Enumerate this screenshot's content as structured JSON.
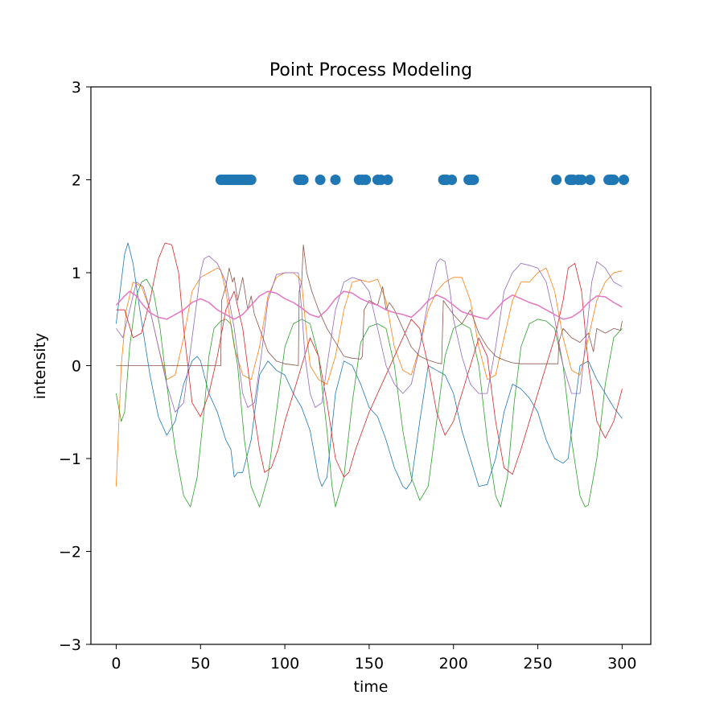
{
  "chart_data": {
    "type": "line",
    "title": "Point Process Modeling",
    "xlabel": "time",
    "ylabel": "intensity",
    "xlim": [
      -15,
      317
    ],
    "ylim": [
      -3,
      3
    ],
    "x_ticks": [
      0,
      50,
      100,
      150,
      200,
      250,
      300
    ],
    "y_ticks": [
      -3,
      -2,
      -1,
      0,
      1,
      2,
      3
    ],
    "x_tick_labels": [
      "0",
      "50",
      "100",
      "150",
      "200",
      "250",
      "300"
    ],
    "y_tick_labels": [
      "−3",
      "−2",
      "−1",
      "0",
      "1",
      "2",
      "3"
    ],
    "grid": false,
    "legend": "none",
    "events": {
      "y": 2,
      "color": "#1f77b4",
      "x": [
        62,
        63,
        64,
        65,
        66,
        67,
        68,
        69,
        70,
        71,
        72,
        73,
        74,
        75,
        76,
        77,
        78,
        79,
        80,
        108,
        109,
        110,
        111,
        121,
        130,
        144,
        146,
        148,
        155,
        157,
        161,
        194,
        195,
        196,
        199,
        209,
        210,
        211,
        212,
        261,
        269,
        270,
        271,
        274,
        276,
        281,
        292,
        293,
        294,
        295,
        301
      ]
    },
    "series": [
      {
        "color": "#1f77b4",
        "width": 0.8,
        "x": [
          0,
          5,
          7,
          10,
          14,
          20,
          25,
          30,
          35,
          40,
          45,
          48,
          50,
          55,
          60,
          65,
          68,
          70,
          72,
          75,
          80,
          85,
          90,
          95,
          100,
          105,
          110,
          115,
          120,
          122,
          125,
          130,
          135,
          140,
          145,
          150,
          155,
          160,
          165,
          170,
          172,
          175,
          180,
          185,
          190,
          195,
          200,
          205,
          210,
          215,
          220,
          225,
          230,
          235,
          240,
          245,
          250,
          255,
          260,
          265,
          268,
          270,
          275,
          280,
          285,
          290,
          295,
          300
        ],
        "y": [
          0.45,
          1.2,
          1.32,
          1.1,
          0.6,
          -0.1,
          -0.55,
          -0.75,
          -0.6,
          -0.2,
          0.05,
          0.1,
          0.05,
          -0.3,
          -0.5,
          -0.8,
          -0.9,
          -1.2,
          -1.15,
          -1.15,
          -0.8,
          -0.1,
          0.05,
          -0.05,
          -0.1,
          -0.3,
          -0.45,
          -0.7,
          -1.2,
          -1.3,
          -1.2,
          -0.3,
          0.05,
          0,
          -0.2,
          -0.45,
          -0.55,
          -0.8,
          -1.1,
          -1.3,
          -1.33,
          -1.25,
          -0.6,
          0,
          -0.05,
          -0.1,
          -0.3,
          -0.7,
          -1.0,
          -1.3,
          -1.28,
          -1.0,
          -0.5,
          -0.2,
          -0.25,
          -0.35,
          -0.5,
          -0.8,
          -1.0,
          -1.05,
          -1.0,
          -0.7,
          0.0,
          0.05,
          -0.15,
          -0.3,
          -0.45,
          -0.57
        ]
      },
      {
        "color": "#ff7f0e",
        "width": 0.8,
        "x": [
          0,
          3,
          6,
          10,
          15,
          20,
          25,
          30,
          35,
          40,
          45,
          50,
          55,
          60,
          62,
          65,
          70,
          75,
          80,
          85,
          90,
          95,
          100,
          105,
          108,
          110,
          112,
          115,
          120,
          125,
          130,
          135,
          140,
          145,
          150,
          155,
          160,
          165,
          170,
          175,
          180,
          185,
          190,
          195,
          200,
          205,
          210,
          215,
          220,
          225,
          230,
          235,
          240,
          245,
          250,
          255,
          260,
          265,
          270,
          275,
          280,
          285,
          290,
          295,
          300
        ],
        "y": [
          -1.3,
          0,
          0.6,
          0.9,
          0.85,
          0.6,
          0.2,
          -0.15,
          -0.1,
          0.3,
          0.8,
          0.95,
          1.0,
          1.05,
          1.03,
          0.8,
          0.2,
          -0.1,
          -0.15,
          0.2,
          0.75,
          0.95,
          1.0,
          1.0,
          0.95,
          0.9,
          0.5,
          0.0,
          -0.15,
          -0.2,
          0.1,
          0.6,
          0.9,
          0.92,
          0.9,
          0.93,
          0.7,
          0.2,
          -0.05,
          -0.1,
          0.2,
          0.6,
          0.8,
          0.9,
          0.95,
          0.95,
          0.7,
          0.2,
          -0.15,
          -0.1,
          0.3,
          0.7,
          0.9,
          0.9,
          1.0,
          1.05,
          0.8,
          0.3,
          -0.05,
          -0.1,
          0.3,
          0.7,
          0.9,
          1.0,
          1.02
        ]
      },
      {
        "color": "#2ca02c",
        "width": 0.8,
        "x": [
          0,
          3,
          5,
          8,
          12,
          15,
          18,
          22,
          26,
          30,
          35,
          40,
          44,
          48,
          52,
          55,
          58,
          62,
          65,
          68,
          72,
          76,
          80,
          85,
          90,
          95,
          100,
          105,
          110,
          115,
          120,
          125,
          128,
          130,
          135,
          140,
          145,
          150,
          155,
          160,
          165,
          170,
          175,
          180,
          185,
          190,
          195,
          200,
          205,
          210,
          215,
          220,
          225,
          228,
          232,
          236,
          240,
          245,
          250,
          255,
          260,
          265,
          270,
          275,
          278,
          280,
          285,
          290,
          295,
          300
        ],
        "y": [
          -0.3,
          -0.6,
          -0.5,
          0.2,
          0.75,
          0.9,
          0.93,
          0.8,
          0.4,
          -0.2,
          -0.9,
          -1.4,
          -1.52,
          -1.2,
          -0.5,
          0.1,
          0.4,
          0.48,
          0.5,
          0.45,
          0.0,
          -0.8,
          -1.3,
          -1.52,
          -1.2,
          -0.5,
          0.2,
          0.45,
          0.5,
          0.45,
          0.1,
          -0.7,
          -1.3,
          -1.52,
          -1.2,
          -0.4,
          0.25,
          0.42,
          0.45,
          0.4,
          0.0,
          -0.7,
          -1.2,
          -1.45,
          -1.3,
          -0.6,
          0.1,
          0.4,
          0.45,
          0.4,
          0.0,
          -0.8,
          -1.4,
          -1.52,
          -1.2,
          -0.4,
          0.2,
          0.45,
          0.5,
          0.48,
          0.4,
          0.0,
          -0.8,
          -1.4,
          -1.52,
          -1.5,
          -1.0,
          -0.2,
          0.3,
          0.4
        ]
      },
      {
        "color": "#d62728",
        "width": 0.8,
        "x": [
          0,
          5,
          10,
          15,
          20,
          25,
          29,
          33,
          37,
          40,
          45,
          50,
          55,
          60,
          65,
          70,
          75,
          80,
          85,
          88,
          92,
          96,
          100,
          105,
          110,
          115,
          120,
          125,
          130,
          135,
          138,
          142,
          146,
          150,
          155,
          160,
          165,
          170,
          175,
          180,
          185,
          190,
          195,
          200,
          205,
          210,
          215,
          220,
          225,
          230,
          235,
          240,
          245,
          250,
          255,
          260,
          265,
          268,
          272,
          276,
          280,
          285,
          290,
          295,
          300
        ],
        "y": [
          0.6,
          0.6,
          0.3,
          0.35,
          0.7,
          1.15,
          1.32,
          1.3,
          1.0,
          0.4,
          -0.4,
          -0.55,
          -0.3,
          0.1,
          0.6,
          0.8,
          0.4,
          -0.3,
          -0.9,
          -1.15,
          -1.1,
          -0.9,
          -0.6,
          -0.3,
          0.0,
          0.3,
          0.1,
          -0.4,
          -1.0,
          -1.2,
          -1.15,
          -0.9,
          -0.7,
          -0.5,
          -0.3,
          -0.1,
          0.1,
          0.3,
          0.5,
          0.4,
          0.0,
          -0.5,
          -0.75,
          -0.6,
          -0.3,
          0.0,
          0.3,
          0.1,
          -0.6,
          -1.1,
          -1.17,
          -0.9,
          -0.6,
          -0.3,
          0.0,
          0.3,
          0.7,
          1.05,
          1.1,
          0.8,
          0.0,
          -0.6,
          -0.78,
          -0.6,
          -0.25
        ]
      },
      {
        "color": "#9467bd",
        "width": 0.8,
        "x": [
          0,
          4,
          8,
          12,
          16,
          20,
          25,
          30,
          35,
          40,
          45,
          50,
          52,
          55,
          60,
          65,
          70,
          75,
          78,
          82,
          86,
          90,
          95,
          100,
          105,
          108,
          110,
          112,
          115,
          118,
          122,
          125,
          130,
          135,
          140,
          145,
          150,
          155,
          160,
          165,
          170,
          175,
          180,
          185,
          190,
          192,
          195,
          198,
          200,
          205,
          210,
          215,
          220,
          225,
          230,
          235,
          240,
          245,
          250,
          255,
          260,
          265,
          270,
          275,
          278,
          282,
          285,
          290,
          295,
          300
        ],
        "y": [
          0.4,
          0.3,
          0.6,
          0.9,
          0.85,
          0.6,
          0.2,
          -0.2,
          -0.5,
          -0.4,
          0.3,
          1.0,
          1.15,
          1.18,
          1.1,
          0.9,
          0.4,
          -0.3,
          -0.45,
          -0.4,
          0.1,
          0.7,
          0.98,
          1.0,
          1.0,
          1.0,
          0.6,
          0.1,
          -0.3,
          -0.45,
          -0.4,
          0.0,
          0.6,
          0.9,
          0.95,
          0.92,
          0.8,
          0.4,
          0.0,
          -0.2,
          -0.3,
          -0.2,
          0.2,
          0.7,
          1.1,
          1.15,
          1.12,
          0.8,
          0.5,
          0.1,
          -0.2,
          -0.3,
          -0.3,
          0.2,
          0.8,
          1.0,
          1.1,
          1.08,
          1.05,
          0.9,
          0.5,
          0.0,
          -0.3,
          -0.3,
          0.2,
          0.9,
          1.12,
          1.05,
          0.9,
          0.85
        ]
      },
      {
        "color": "#8c564b",
        "width": 0.8,
        "x": [
          0,
          62,
          62.5,
          65,
          67,
          69,
          70,
          72,
          75,
          78,
          80,
          82,
          85,
          90,
          95,
          100,
          104,
          108,
          108.5,
          110,
          111,
          113,
          116,
          120,
          125,
          130,
          135,
          140,
          145,
          146,
          147,
          150,
          155,
          158,
          160,
          162,
          165,
          170,
          175,
          180,
          185,
          190,
          193,
          194,
          196,
          200,
          205,
          210,
          215,
          220,
          225,
          230,
          235,
          240,
          245,
          250,
          260,
          262,
          262.5,
          265,
          270,
          275,
          280,
          283,
          285,
          290,
          295,
          299,
          300
        ],
        "y": [
          0,
          0,
          0.7,
          0.85,
          1.05,
          0.9,
          0.95,
          0.7,
          0.95,
          0.6,
          0.75,
          0.55,
          0.4,
          0.15,
          0.05,
          0.02,
          0.01,
          0.0,
          0.8,
          0.9,
          1.3,
          1.0,
          0.8,
          0.6,
          0.4,
          0.25,
          0.1,
          0.08,
          0.07,
          0.1,
          0.6,
          0.7,
          0.65,
          0.85,
          0.6,
          0.68,
          0.6,
          0.4,
          0.2,
          0.1,
          0.06,
          0.03,
          0.02,
          0.7,
          0.65,
          0.55,
          0.45,
          0.6,
          0.35,
          0.2,
          0.1,
          0.06,
          0.03,
          0.02,
          0.02,
          0.02,
          0.02,
          0.02,
          0.25,
          0.4,
          0.3,
          0.25,
          0.35,
          0.15,
          0.4,
          0.35,
          0.4,
          0.38,
          0.48
        ]
      },
      {
        "color": "#e377c2",
        "width": 1.5,
        "x": [
          0,
          5,
          8,
          12,
          16,
          20,
          25,
          30,
          35,
          40,
          45,
          50,
          55,
          60,
          65,
          70,
          75,
          80,
          85,
          90,
          95,
          100,
          105,
          110,
          115,
          120,
          125,
          130,
          135,
          140,
          145,
          150,
          155,
          160,
          165,
          170,
          175,
          180,
          185,
          190,
          195,
          200,
          205,
          210,
          215,
          220,
          225,
          230,
          235,
          240,
          245,
          250,
          255,
          260,
          265,
          270,
          275,
          280,
          285,
          290,
          295,
          300
        ],
        "y": [
          0.65,
          0.75,
          0.8,
          0.75,
          0.65,
          0.57,
          0.52,
          0.5,
          0.55,
          0.6,
          0.68,
          0.72,
          0.68,
          0.6,
          0.55,
          0.5,
          0.55,
          0.65,
          0.75,
          0.8,
          0.78,
          0.72,
          0.68,
          0.62,
          0.55,
          0.52,
          0.6,
          0.72,
          0.8,
          0.78,
          0.72,
          0.68,
          0.65,
          0.6,
          0.57,
          0.55,
          0.52,
          0.6,
          0.7,
          0.76,
          0.72,
          0.65,
          0.58,
          0.55,
          0.52,
          0.5,
          0.6,
          0.7,
          0.76,
          0.72,
          0.68,
          0.65,
          0.6,
          0.55,
          0.5,
          0.52,
          0.58,
          0.68,
          0.75,
          0.74,
          0.68,
          0.63
        ]
      }
    ]
  }
}
